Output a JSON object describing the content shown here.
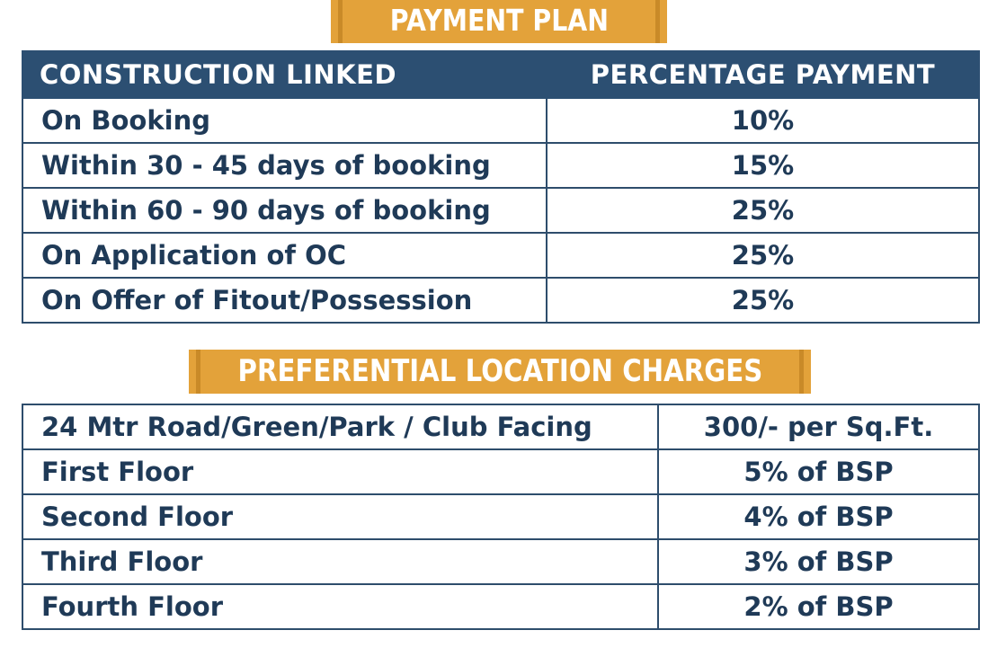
{
  "payment_plan": {
    "title": "PAYMENT PLAN",
    "headers": [
      "CONSTRUCTION LINKED",
      "PERCENTAGE PAYMENT"
    ],
    "rows": [
      {
        "stage": "On Booking",
        "payment": "10%"
      },
      {
        "stage": "Within 30 - 45 days of booking",
        "payment": "15%"
      },
      {
        "stage": "Within 60 - 90 days of booking",
        "payment": "25%"
      },
      {
        "stage": "On Application of OC",
        "payment": "25%"
      },
      {
        "stage": "On Offer of Fitout/Possession",
        "payment": "25%"
      }
    ]
  },
  "plc": {
    "title": "PREFERENTIAL LOCATION CHARGES",
    "rows": [
      {
        "location": "24 Mtr Road/Green/Park / Club Facing",
        "charge": "300/- per Sq.Ft."
      },
      {
        "location": "First Floor",
        "charge": "5% of BSP"
      },
      {
        "location": "Second Floor",
        "charge": "4% of BSP"
      },
      {
        "location": "Third Floor",
        "charge": "3% of BSP"
      },
      {
        "location": "Fourth Floor",
        "charge": "2% of BSP"
      }
    ]
  },
  "colors": {
    "banner": "#e3a23a",
    "header_bg": "#2c4f72",
    "text": "#1f3a57",
    "border": "#2e4d6c"
  }
}
